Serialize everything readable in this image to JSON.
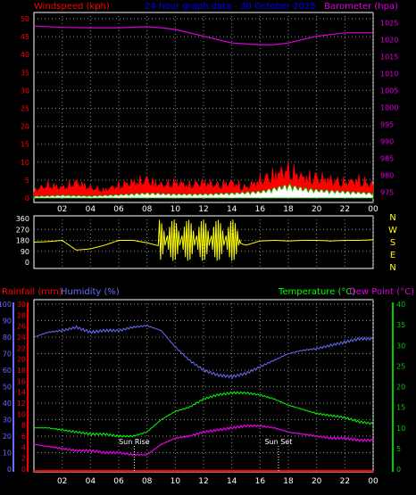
{
  "header": {
    "left_title": "Windspeed (kph)",
    "center_title": "24 hour graph data - 30 October 2025",
    "right_title": "Barometer (hpa)"
  },
  "colors": {
    "background": "#000000",
    "frame": "#ffffff",
    "grid": "#8a8a8a",
    "windspeed": "#ff0000",
    "gust_fill": "#ff0000",
    "avg_wind": "#00cc00",
    "wind_light": "#ffffff",
    "barometer": "#dd00dd",
    "wind_direction": "#ffff00",
    "compass_letters": "#ffff00",
    "rainfall": "#ff0000",
    "humidity": "#6a6aff",
    "temperature": "#00ff00",
    "dew_point": "#dd00dd",
    "temp_axis": "#00cc00",
    "sun_marker": "#ffffff"
  },
  "x_axis": {
    "ticks": [
      "02",
      "04",
      "06",
      "08",
      "10",
      "12",
      "14",
      "16",
      "18",
      "20",
      "22",
      "00"
    ]
  },
  "compass": [
    "N",
    "W",
    "S",
    "E",
    "N"
  ],
  "chart_data": [
    {
      "type": "line",
      "title": "24 hour graph data - 30 October 2025",
      "left_axis_label": "Windspeed (kph)",
      "right_axis_label": "Barometer (hpa)",
      "left_ticks": [
        0,
        5,
        10,
        15,
        20,
        25,
        30,
        35,
        40,
        45,
        50
      ],
      "right_ticks": [
        975,
        980,
        985,
        990,
        995,
        1000,
        1005,
        1010,
        1015,
        1020,
        1025
      ],
      "ylim_left": [
        0,
        50
      ],
      "ylim_right": [
        972,
        1028
      ],
      "grid": true,
      "series": [
        {
          "name": "Barometer (hpa)",
          "axis": "right",
          "x": [
            0,
            2,
            4,
            6,
            8,
            9,
            10,
            12,
            14,
            16,
            17,
            18,
            19,
            20,
            22,
            24
          ],
          "values": [
            1024,
            1023.6,
            1023.5,
            1023.5,
            1023.8,
            1023.5,
            1023,
            1021,
            1019,
            1018.5,
            1018.5,
            1019,
            1020,
            1021,
            1022,
            1022
          ]
        },
        {
          "name": "Windspeed (kph)",
          "axis": "left",
          "x": [
            0,
            1,
            2,
            3,
            4,
            5,
            6,
            7,
            8,
            9,
            10,
            11,
            12,
            13,
            14,
            15,
            16,
            17,
            18,
            19,
            20,
            21,
            22,
            23,
            24
          ],
          "values": [
            3,
            5,
            4,
            6,
            4,
            3,
            5,
            6,
            7,
            5,
            6,
            5,
            6,
            5,
            6,
            4,
            7,
            9,
            11,
            8,
            8,
            7,
            6,
            7,
            5
          ]
        },
        {
          "name": "Average windspeed",
          "axis": "left",
          "x": [
            0,
            2,
            4,
            6,
            8,
            10,
            12,
            14,
            16,
            17,
            18,
            19,
            20,
            22,
            24
          ],
          "values": [
            0.5,
            0.8,
            0.6,
            1,
            1.5,
            1.2,
            1.2,
            1.5,
            2,
            3,
            4,
            3,
            2.5,
            2,
            1.5
          ]
        }
      ]
    },
    {
      "type": "scatter",
      "title": "Wind direction",
      "left_ticks": [
        0,
        90,
        180,
        270,
        360
      ],
      "ylim": [
        0,
        360
      ],
      "series": [
        {
          "name": "Wind direction",
          "x": [
            0,
            1,
            2,
            3,
            4,
            5,
            6,
            7,
            8,
            9,
            10,
            11,
            12,
            13,
            14,
            15,
            16,
            17,
            18,
            19,
            20,
            21,
            22,
            23,
            24
          ],
          "values": [
            165,
            170,
            180,
            100,
            110,
            140,
            180,
            180,
            160,
            130,
            180,
            160,
            200,
            150,
            180,
            140,
            175,
            180,
            175,
            180,
            180,
            175,
            180,
            180,
            185
          ]
        }
      ]
    },
    {
      "type": "line",
      "left_axis_labels": [
        "Rainfall (mm)",
        "Humidity (%)"
      ],
      "right_axis_labels": [
        "Temperature (°C)",
        "Dew Point (°C)"
      ],
      "rainfall_ticks": [
        0,
        2,
        4,
        6,
        8,
        10,
        12,
        14,
        16,
        18,
        20,
        22,
        24,
        26,
        28,
        30
      ],
      "humidity_ticks": [
        0,
        10,
        20,
        30,
        40,
        50,
        60,
        70,
        80,
        90,
        100
      ],
      "temperature_ticks": [
        0,
        5,
        10,
        15,
        20,
        25,
        30,
        35,
        40
      ],
      "ylim_humidity": [
        0,
        100
      ],
      "ylim_temperature": [
        0,
        40
      ],
      "grid": true,
      "annotations": [
        {
          "text": "Sun Rise",
          "x": 7.1
        },
        {
          "text": "Sun Set",
          "x": 17.3
        }
      ],
      "series": [
        {
          "name": "Humidity (%)",
          "axis": "humidity",
          "x": [
            0,
            1,
            2,
            3,
            4,
            5,
            6,
            7,
            8,
            9,
            10,
            11,
            12,
            13,
            14,
            15,
            16,
            17,
            18,
            19,
            20,
            21,
            22,
            23,
            24
          ],
          "values": [
            80,
            83,
            84,
            86,
            83,
            84,
            84,
            86,
            87,
            84,
            74,
            66,
            60,
            57,
            56,
            58,
            62,
            66,
            70,
            72,
            73,
            75,
            77,
            79,
            79
          ]
        },
        {
          "name": "Temperature (°C)",
          "axis": "temperature",
          "x": [
            0,
            1,
            2,
            3,
            4,
            5,
            6,
            7,
            8,
            9,
            10,
            11,
            12,
            13,
            14,
            15,
            16,
            17,
            18,
            19,
            20,
            21,
            22,
            23,
            24
          ],
          "values": [
            10,
            10,
            9.5,
            9,
            8.5,
            8.5,
            8,
            8,
            9,
            12,
            14,
            15,
            17,
            18,
            18.5,
            18.5,
            18,
            17,
            15.5,
            14.5,
            13.5,
            13,
            12.5,
            11.5,
            11
          ]
        },
        {
          "name": "Dew Point (°C)",
          "axis": "temperature",
          "x": [
            0,
            1,
            2,
            3,
            4,
            5,
            6,
            7,
            8,
            9,
            10,
            11,
            12,
            13,
            14,
            15,
            16,
            17,
            18,
            19,
            20,
            21,
            22,
            23,
            24
          ],
          "values": [
            6,
            5.5,
            5,
            4.5,
            4.5,
            4,
            4,
            3.5,
            3.5,
            6,
            7.5,
            8,
            9,
            9.5,
            10,
            10.5,
            10.5,
            10,
            9,
            8.5,
            8,
            7.5,
            7.5,
            7,
            7
          ]
        },
        {
          "name": "Rainfall (mm)",
          "axis": "rainfall",
          "x": [
            0,
            24
          ],
          "values": [
            0,
            0
          ]
        }
      ]
    }
  ]
}
